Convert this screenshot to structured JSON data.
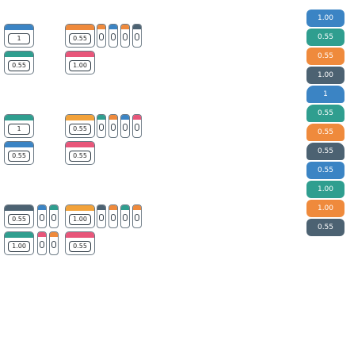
{
  "colors": {
    "teal": "#2f9e8f",
    "blue": "#3b84c4",
    "orange": "#ef8a3c",
    "slate": "#4c6272",
    "pink": "#e8567a",
    "amber": "#f2a23a"
  },
  "left_grid": {
    "row1": [
      {
        "value": "",
        "bar": "blue",
        "empty": true
      },
      {
        "value": "1",
        "bar": "blue"
      },
      {
        "value": "0.55",
        "bar": "orange"
      }
    ],
    "row2": [
      {
        "value": "0.55",
        "bar": "teal"
      },
      {
        "value": "1.00",
        "bar": "pink"
      }
    ],
    "row3": [
      {
        "value": "1",
        "bar": "teal"
      },
      {
        "value": "0.55",
        "bar": "amber"
      }
    ],
    "row4": [
      {
        "value": "0.55",
        "bar": "blue"
      },
      {
        "value": "0.55",
        "bar": "pink"
      }
    ],
    "row5": [
      {
        "value": "0.55",
        "bar": "slate"
      },
      {
        "value": "1.00",
        "bar": "amber"
      }
    ],
    "row6": [
      {
        "value": "1.00",
        "bar": "teal"
      },
      {
        "value": "0.55",
        "bar": "pink"
      }
    ]
  },
  "right_column": [
    {
      "value": "1.00",
      "color": "blue"
    },
    {
      "value": "0.55",
      "color": "teal"
    },
    {
      "value": "0.55",
      "color": "orange"
    },
    {
      "value": "1.00",
      "color": "slate"
    },
    {
      "value": "1",
      "color": "blue"
    },
    {
      "value": "0.55",
      "color": "teal"
    },
    {
      "value": "0.55",
      "color": "orange"
    },
    {
      "value": "0.55",
      "color": "slate"
    },
    {
      "value": "0.55",
      "color": "blue"
    },
    {
      "value": "1.00",
      "color": "teal"
    },
    {
      "value": "1.00",
      "color": "orange"
    },
    {
      "value": "0.55",
      "color": "slate"
    }
  ],
  "vertical_columns": {
    "row1_caps": [
      "orange",
      "blue",
      "orange",
      "slate"
    ],
    "row3_caps": [
      "teal",
      "orange",
      "blue",
      "pink"
    ],
    "row5_caps": [
      "blue",
      "teal",
      "slate",
      "orange",
      "teal",
      "orange",
      "pink",
      "orange"
    ]
  }
}
